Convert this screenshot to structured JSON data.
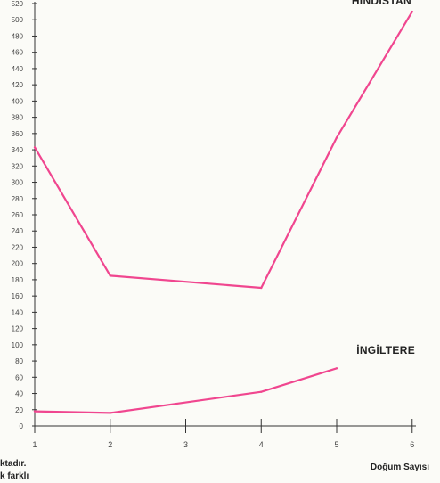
{
  "chart_data": {
    "type": "line",
    "xlabel": "Doğum Sayısı",
    "ylabel": "",
    "x": [
      1,
      2,
      3,
      4,
      5,
      6
    ],
    "xlim": [
      1,
      6.05
    ],
    "ylim": [
      0,
      520
    ],
    "y_ticks": [
      0,
      20,
      40,
      60,
      80,
      100,
      120,
      140,
      160,
      180,
      200,
      220,
      240,
      260,
      280,
      300,
      320,
      340,
      360,
      380,
      400,
      420,
      440,
      460,
      480,
      500,
      520
    ],
    "grid": false,
    "line_color": "#f0468f",
    "series": [
      {
        "name": "HİNDİSTAN",
        "x": [
          1,
          2,
          4,
          5,
          6
        ],
        "values": [
          343,
          185,
          170,
          355,
          510
        ]
      },
      {
        "name": "İNGİLTERE",
        "x": [
          1,
          2,
          4,
          5
        ],
        "values": [
          18,
          16,
          42,
          71
        ]
      }
    ],
    "text_fragments": [
      "ktadır.",
      "k farklı"
    ]
  }
}
